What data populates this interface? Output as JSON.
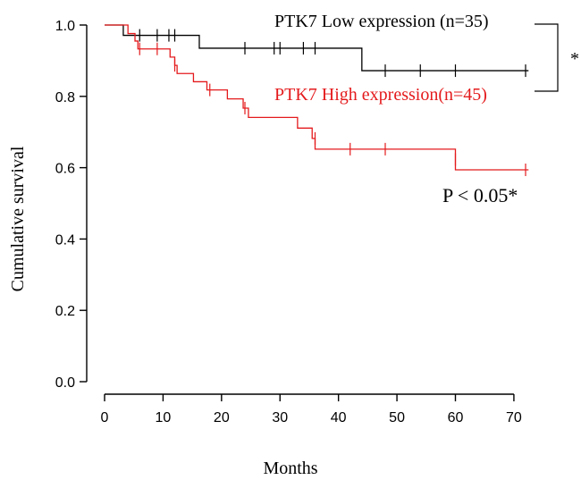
{
  "chart_data": {
    "type": "line",
    "subtype": "kaplan-meier",
    "xlabel": "Months",
    "ylabel": "Cumulative survival",
    "xlim": [
      0,
      72
    ],
    "ylim": [
      0,
      1.0
    ],
    "x_ticks": [
      0,
      10,
      20,
      30,
      40,
      50,
      60,
      70
    ],
    "y_ticks": [
      0.0,
      0.2,
      0.4,
      0.6,
      0.8,
      1.0
    ],
    "x_tick_labels": [
      "0",
      "10",
      "20",
      "30",
      "40",
      "50",
      "60",
      "70"
    ],
    "y_tick_labels": [
      "0.0",
      "0.2",
      "0.4",
      "0.6",
      "0.8",
      "1.0"
    ],
    "grid": false,
    "series": [
      {
        "name": "PTK7 Low expression (n=35)",
        "color": "#000000",
        "steps": [
          {
            "x": 0,
            "y": 1.0
          },
          {
            "x": 3.2,
            "y": 0.971
          },
          {
            "x": 16.2,
            "y": 0.935
          },
          {
            "x": 44,
            "y": 0.872
          },
          {
            "x": 72.5,
            "y": 0.872
          }
        ],
        "censored": [
          {
            "x": 6,
            "y": 0.971
          },
          {
            "x": 9,
            "y": 0.971
          },
          {
            "x": 11,
            "y": 0.971
          },
          {
            "x": 12,
            "y": 0.971
          },
          {
            "x": 24,
            "y": 0.935
          },
          {
            "x": 29,
            "y": 0.935
          },
          {
            "x": 30,
            "y": 0.935
          },
          {
            "x": 34,
            "y": 0.935
          },
          {
            "x": 36,
            "y": 0.935
          },
          {
            "x": 48,
            "y": 0.872
          },
          {
            "x": 54,
            "y": 0.872
          },
          {
            "x": 60,
            "y": 0.872
          },
          {
            "x": 72,
            "y": 0.872
          }
        ]
      },
      {
        "name": "PTK7 High expression(n=45)",
        "color": "#e41a1c",
        "steps": [
          {
            "x": 0,
            "y": 1.0
          },
          {
            "x": 3.5,
            "y": 1.0
          },
          {
            "x": 4.0,
            "y": 0.976
          },
          {
            "x": 5.2,
            "y": 0.955
          },
          {
            "x": 5.7,
            "y": 0.933
          },
          {
            "x": 11.2,
            "y": 0.91
          },
          {
            "x": 12.0,
            "y": 0.887
          },
          {
            "x": 12.4,
            "y": 0.864
          },
          {
            "x": 15.2,
            "y": 0.841
          },
          {
            "x": 17.5,
            "y": 0.818
          },
          {
            "x": 21.0,
            "y": 0.793
          },
          {
            "x": 23.7,
            "y": 0.767
          },
          {
            "x": 24.6,
            "y": 0.741
          },
          {
            "x": 33.0,
            "y": 0.711
          },
          {
            "x": 35.5,
            "y": 0.682
          },
          {
            "x": 36.0,
            "y": 0.652
          },
          {
            "x": 60.0,
            "y": 0.594
          },
          {
            "x": 72.5,
            "y": 0.594
          }
        ],
        "censored": [
          {
            "x": 6,
            "y": 0.933
          },
          {
            "x": 9,
            "y": 0.933
          },
          {
            "x": 12,
            "y": 0.887
          },
          {
            "x": 18,
            "y": 0.818
          },
          {
            "x": 24,
            "y": 0.767
          },
          {
            "x": 36,
            "y": 0.682
          },
          {
            "x": 42,
            "y": 0.652
          },
          {
            "x": 48,
            "y": 0.652
          },
          {
            "x": 60,
            "y": 0.623
          },
          {
            "x": 72,
            "y": 0.594
          }
        ]
      }
    ],
    "annotations": {
      "pvalue": "P < 0.05*",
      "bracket_mark": "*"
    }
  }
}
